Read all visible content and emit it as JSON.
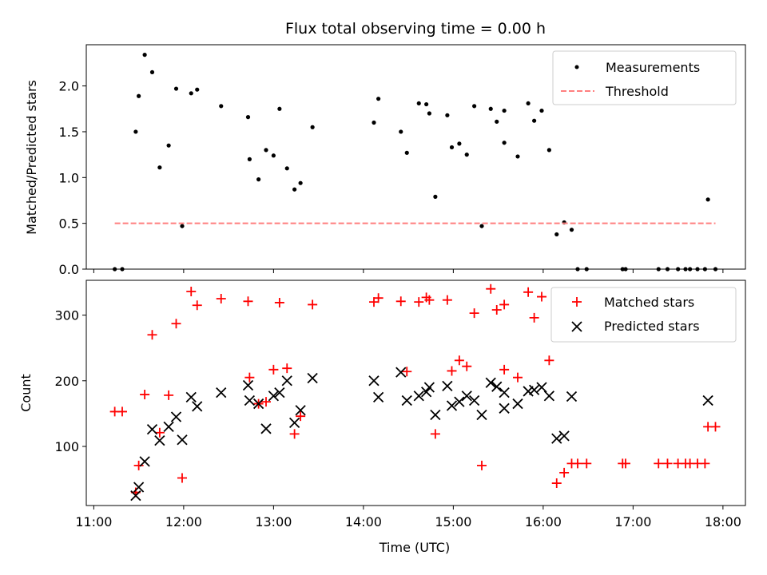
{
  "chart_data": [
    {
      "type": "scatter",
      "title": "Flux total observing time = 0.00 h",
      "xlabel": "",
      "ylabel": "Matched/Predicted stars",
      "xlim": [
        "10:55",
        "18:15"
      ],
      "ylim": [
        0,
        2.45
      ],
      "x_ticks": [
        "11:00",
        "12:00",
        "13:00",
        "14:00",
        "15:00",
        "16:00",
        "17:00",
        "18:00"
      ],
      "y_ticks": [
        0.0,
        0.5,
        1.0,
        1.5,
        2.0
      ],
      "y_tick_labels": [
        "0.0",
        "0.5",
        "1.0",
        "1.5",
        "2.0"
      ],
      "grid": false,
      "legend": "top-right",
      "series": [
        {
          "name": "Measurements",
          "color": "#000000",
          "marker": "dot",
          "points": [
            [
              "11:14",
              0.0
            ],
            [
              "11:19",
              0.0
            ],
            [
              "11:28",
              1.5
            ],
            [
              "11:30",
              1.89
            ],
            [
              "11:34",
              2.34
            ],
            [
              "11:39",
              2.15
            ],
            [
              "11:44",
              1.11
            ],
            [
              "11:50",
              1.35
            ],
            [
              "11:55",
              1.97
            ],
            [
              "11:59",
              0.47
            ],
            [
              "12:05",
              1.92
            ],
            [
              "12:09",
              1.96
            ],
            [
              "12:25",
              1.78
            ],
            [
              "12:43",
              1.66
            ],
            [
              "12:44",
              1.2
            ],
            [
              "12:50",
              0.98
            ],
            [
              "12:55",
              1.3
            ],
            [
              "13:00",
              1.24
            ],
            [
              "13:04",
              1.75
            ],
            [
              "13:09",
              1.1
            ],
            [
              "13:14",
              0.87
            ],
            [
              "13:18",
              0.94
            ],
            [
              "13:26",
              1.55
            ],
            [
              "14:07",
              1.6
            ],
            [
              "14:10",
              1.86
            ],
            [
              "14:25",
              1.5
            ],
            [
              "14:29",
              1.27
            ],
            [
              "14:37",
              1.81
            ],
            [
              "14:42",
              1.8
            ],
            [
              "14:44",
              1.7
            ],
            [
              "14:48",
              0.79
            ],
            [
              "14:56",
              1.68
            ],
            [
              "14:59",
              1.33
            ],
            [
              "15:04",
              1.37
            ],
            [
              "15:09",
              1.25
            ],
            [
              "15:14",
              1.78
            ],
            [
              "15:19",
              0.47
            ],
            [
              "15:25",
              1.75
            ],
            [
              "15:29",
              1.61
            ],
            [
              "15:34",
              1.73
            ],
            [
              "15:34",
              1.38
            ],
            [
              "15:43",
              1.23
            ],
            [
              "15:50",
              1.81
            ],
            [
              "15:54",
              1.62
            ],
            [
              "15:59",
              1.73
            ],
            [
              "16:04",
              1.3
            ],
            [
              "16:09",
              0.38
            ],
            [
              "16:14",
              0.51
            ],
            [
              "16:19",
              0.43
            ],
            [
              "16:23",
              0.0
            ],
            [
              "16:29",
              0.0
            ],
            [
              "16:53",
              0.0
            ],
            [
              "16:55",
              0.0
            ],
            [
              "17:17",
              0.0
            ],
            [
              "17:23",
              0.0
            ],
            [
              "17:30",
              0.0
            ],
            [
              "17:35",
              0.0
            ],
            [
              "17:38",
              0.0
            ],
            [
              "17:43",
              0.0
            ],
            [
              "17:48",
              0.0
            ],
            [
              "17:50",
              0.76
            ],
            [
              "17:55",
              0.0
            ]
          ]
        },
        {
          "name": "Threshold",
          "color": "#ff7f7f",
          "style": "dashed",
          "y": 0.5,
          "x_range": [
            "11:14",
            "17:55"
          ]
        }
      ]
    },
    {
      "type": "scatter",
      "title": "",
      "xlabel": "Time (UTC)",
      "ylabel": "Count",
      "xlim": [
        "10:55",
        "18:15"
      ],
      "ylim": [
        10,
        353
      ],
      "x_ticks": [
        "11:00",
        "12:00",
        "13:00",
        "14:00",
        "15:00",
        "16:00",
        "17:00",
        "18:00"
      ],
      "y_ticks": [
        100,
        200,
        300
      ],
      "grid": false,
      "legend": "top-right",
      "series": [
        {
          "name": "Matched stars",
          "color": "#ff0000",
          "marker": "plus",
          "points": [
            [
              "11:14",
              153
            ],
            [
              "11:19",
              153
            ],
            [
              "11:28",
              30
            ],
            [
              "11:30",
              71
            ],
            [
              "11:34",
              179
            ],
            [
              "11:39",
              270
            ],
            [
              "11:44",
              121
            ],
            [
              "11:50",
              178
            ],
            [
              "11:55",
              287
            ],
            [
              "11:59",
              52
            ],
            [
              "12:05",
              336
            ],
            [
              "12:09",
              315
            ],
            [
              "12:25",
              325
            ],
            [
              "12:43",
              321
            ],
            [
              "12:44",
              205
            ],
            [
              "12:50",
              165
            ],
            [
              "12:55",
              168
            ],
            [
              "13:00",
              217
            ],
            [
              "13:04",
              319
            ],
            [
              "13:09",
              219
            ],
            [
              "13:14",
              119
            ],
            [
              "13:18",
              146
            ],
            [
              "13:26",
              316
            ],
            [
              "14:07",
              320
            ],
            [
              "14:10",
              326
            ],
            [
              "14:25",
              321
            ],
            [
              "14:29",
              214
            ],
            [
              "14:37",
              320
            ],
            [
              "14:42",
              327
            ],
            [
              "14:44",
              323
            ],
            [
              "14:48",
              119
            ],
            [
              "14:56",
              323
            ],
            [
              "14:59",
              215
            ],
            [
              "15:04",
              231
            ],
            [
              "15:09",
              222
            ],
            [
              "15:14",
              303
            ],
            [
              "15:19",
              71
            ],
            [
              "15:25",
              340
            ],
            [
              "15:29",
              308
            ],
            [
              "15:34",
              316
            ],
            [
              "15:34",
              217
            ],
            [
              "15:43",
              205
            ],
            [
              "15:50",
              335
            ],
            [
              "15:54",
              296
            ],
            [
              "15:59",
              328
            ],
            [
              "16:04",
              231
            ],
            [
              "16:09",
              44
            ],
            [
              "16:14",
              60
            ],
            [
              "16:19",
              74
            ],
            [
              "16:23",
              74
            ],
            [
              "16:29",
              74
            ],
            [
              "16:53",
              74
            ],
            [
              "16:55",
              74
            ],
            [
              "17:17",
              74
            ],
            [
              "17:23",
              74
            ],
            [
              "17:30",
              74
            ],
            [
              "17:35",
              74
            ],
            [
              "17:38",
              74
            ],
            [
              "17:43",
              74
            ],
            [
              "17:48",
              74
            ],
            [
              "17:50",
              130
            ],
            [
              "17:55",
              130
            ]
          ]
        },
        {
          "name": "Predicted stars",
          "color": "#000000",
          "marker": "x",
          "points": [
            [
              "11:28",
              25
            ],
            [
              "11:30",
              38
            ],
            [
              "11:34",
              77
            ],
            [
              "11:39",
              126
            ],
            [
              "11:44",
              109
            ],
            [
              "11:50",
              130
            ],
            [
              "11:55",
              145
            ],
            [
              "11:59",
              110
            ],
            [
              "12:05",
              175
            ],
            [
              "12:09",
              161
            ],
            [
              "12:25",
              182
            ],
            [
              "12:43",
              193
            ],
            [
              "12:44",
              170
            ],
            [
              "12:50",
              165
            ],
            [
              "12:55",
              127
            ],
            [
              "13:00",
              177
            ],
            [
              "13:04",
              182
            ],
            [
              "13:09",
              200
            ],
            [
              "13:14",
              136
            ],
            [
              "13:18",
              155
            ],
            [
              "13:26",
              204
            ],
            [
              "14:07",
              200
            ],
            [
              "14:10",
              175
            ],
            [
              "14:25",
              213
            ],
            [
              "14:29",
              170
            ],
            [
              "14:37",
              177
            ],
            [
              "14:42",
              183
            ],
            [
              "14:44",
              190
            ],
            [
              "14:48",
              148
            ],
            [
              "14:56",
              192
            ],
            [
              "14:59",
              162
            ],
            [
              "15:04",
              168
            ],
            [
              "15:09",
              177
            ],
            [
              "15:14",
              170
            ],
            [
              "15:19",
              148
            ],
            [
              "15:25",
              197
            ],
            [
              "15:29",
              191
            ],
            [
              "15:34",
              182
            ],
            [
              "15:34",
              158
            ],
            [
              "15:43",
              165
            ],
            [
              "15:50",
              184
            ],
            [
              "15:54",
              186
            ],
            [
              "15:59",
              190
            ],
            [
              "16:04",
              177
            ],
            [
              "16:09",
              112
            ],
            [
              "16:14",
              116
            ],
            [
              "16:19",
              176
            ],
            [
              "17:50",
              170
            ]
          ]
        }
      ]
    }
  ]
}
